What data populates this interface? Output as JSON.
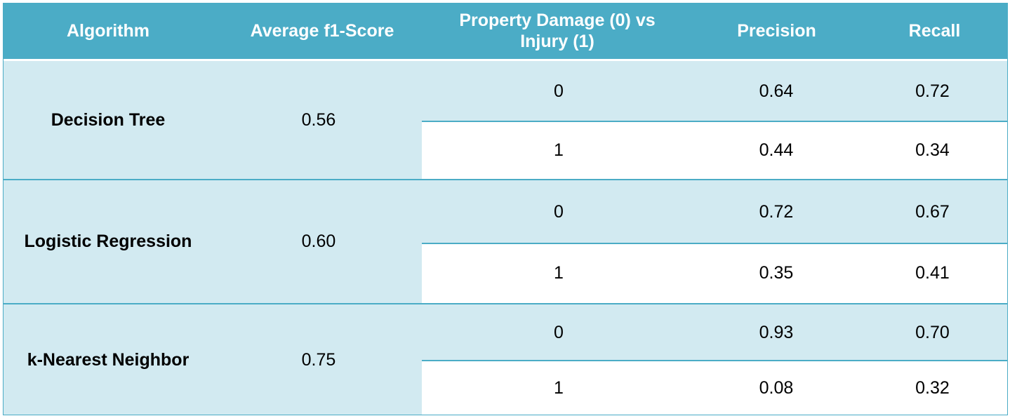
{
  "chart_data": {
    "type": "table",
    "columns": [
      "Algorithm",
      "Average f1-Score",
      "Property Damage (0) vs Injury (1)",
      "Precision",
      "Recall"
    ],
    "rows": [
      {
        "algorithm": "Decision Tree",
        "f1": "0.56",
        "classes": [
          {
            "label": "0",
            "precision": "0.64",
            "recall": "0.72"
          },
          {
            "label": "1",
            "precision": "0.44",
            "recall": "0.34"
          }
        ]
      },
      {
        "algorithm": "Logistic Regression",
        "f1": "0.60",
        "classes": [
          {
            "label": "0",
            "precision": "0.72",
            "recall": "0.67"
          },
          {
            "label": "1",
            "precision": "0.35",
            "recall": "0.41"
          }
        ]
      },
      {
        "algorithm": "k-Nearest Neighbor",
        "f1": "0.75",
        "classes": [
          {
            "label": "0",
            "precision": "0.93",
            "recall": "0.70"
          },
          {
            "label": "1",
            "precision": "0.08",
            "recall": "0.32"
          }
        ]
      }
    ]
  },
  "colors": {
    "header_bg": "#4bacc6",
    "band": "#d2eaf1",
    "white": "#ffffff"
  }
}
